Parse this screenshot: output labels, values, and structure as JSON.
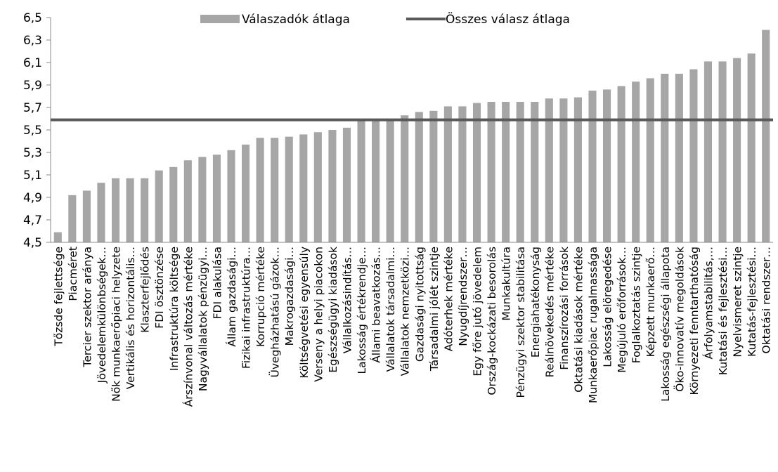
{
  "chart_data": {
    "type": "bar",
    "categories": [
      "Tőzsde fejlettsége",
      "Piacméret",
      "Tercier szektor aránya",
      "Jövedelemkülönbségek…",
      "Nők munkaerőpiaci helyzete",
      "Vertikális és horizontális…",
      "Klaszterfejlődés",
      "FDI ösztönzése",
      "Infrastruktúra költsége",
      "Árszínvonal változás mértéke",
      "Nagyvállalatok pénzügyi…",
      "FDI alakulása",
      "Állam gazdasági…",
      "Fizikai infrastruktúra…",
      "Korrupció mértéke",
      "Üvegházhatású gázok…",
      "Makrogazdasági…",
      "Költségvetési egyensúly",
      "Verseny a helyi piacokon",
      "Egészségügyi kiadások",
      "Vállalkozásindítás…",
      "Lakosság értékrendje…",
      "Állami beavatkozás…",
      "Vállalatok társadalmi…",
      "Vállalatok nemzetközi…",
      "Gazdasági nyitottság",
      "Társadalmi jólét szintje",
      "Adóterhek mértéke",
      "Nyugdíjrendszer…",
      "Egy főre jutó jövedelem",
      "Ország-kockázati besorolás",
      "Munkakultúra",
      "Pénzügyi szektor stabilitása",
      "Energiahatékonyság",
      "Reálnövekedés mértéke",
      "Finanszírozási források",
      "Oktatási kiadások mértéke",
      "Munkaerőpiac rugalmassága",
      "Lakosság elöregedése",
      "Megújuló erőforrások…",
      "Foglalkoztatás szintje",
      "Képzett munkaerő…",
      "Lakosság egészségi állapota",
      "Öko-innovatív megoldások",
      "Környezeti fenntarthatóság",
      "Árfolyamstabilitás,…",
      "Kutatási és fejlesztési…",
      "Nyelvismeret szintje",
      "Kutatás-fejlesztési…",
      "Oktatási rendszer…"
    ],
    "series": [
      {
        "name": "Válaszadók átlaga",
        "color": "#a6a6a6",
        "values": [
          4.59,
          4.92,
          4.96,
          5.03,
          5.07,
          5.07,
          5.07,
          5.14,
          5.17,
          5.23,
          5.26,
          5.28,
          5.32,
          5.37,
          5.43,
          5.43,
          5.44,
          5.46,
          5.48,
          5.5,
          5.52,
          5.58,
          5.58,
          5.59,
          5.63,
          5.66,
          5.67,
          5.71,
          5.71,
          5.74,
          5.75,
          5.75,
          5.75,
          5.75,
          5.78,
          5.78,
          5.79,
          5.85,
          5.86,
          5.89,
          5.93,
          5.96,
          6.0,
          6.0,
          6.04,
          6.11,
          6.11,
          6.14,
          6.18,
          6.39
        ]
      }
    ],
    "reference_line": {
      "name": "Összes válasz átlaga",
      "color": "#595959",
      "value": 5.59
    },
    "ylim": [
      4.5,
      6.5
    ],
    "yticks": [
      {
        "value": 4.5,
        "label": "4,5"
      },
      {
        "value": 4.7,
        "label": "4,7"
      },
      {
        "value": 4.9,
        "label": "4,9"
      },
      {
        "value": 5.1,
        "label": "5,1"
      },
      {
        "value": 5.3,
        "label": "5,3"
      },
      {
        "value": 5.5,
        "label": "5,5"
      },
      {
        "value": 5.7,
        "label": "5,7"
      },
      {
        "value": 5.9,
        "label": "5,9"
      },
      {
        "value": 6.1,
        "label": "6,1"
      },
      {
        "value": 6.3,
        "label": "6,3"
      },
      {
        "value": 6.5,
        "label": "6,5"
      }
    ],
    "grid": false
  }
}
